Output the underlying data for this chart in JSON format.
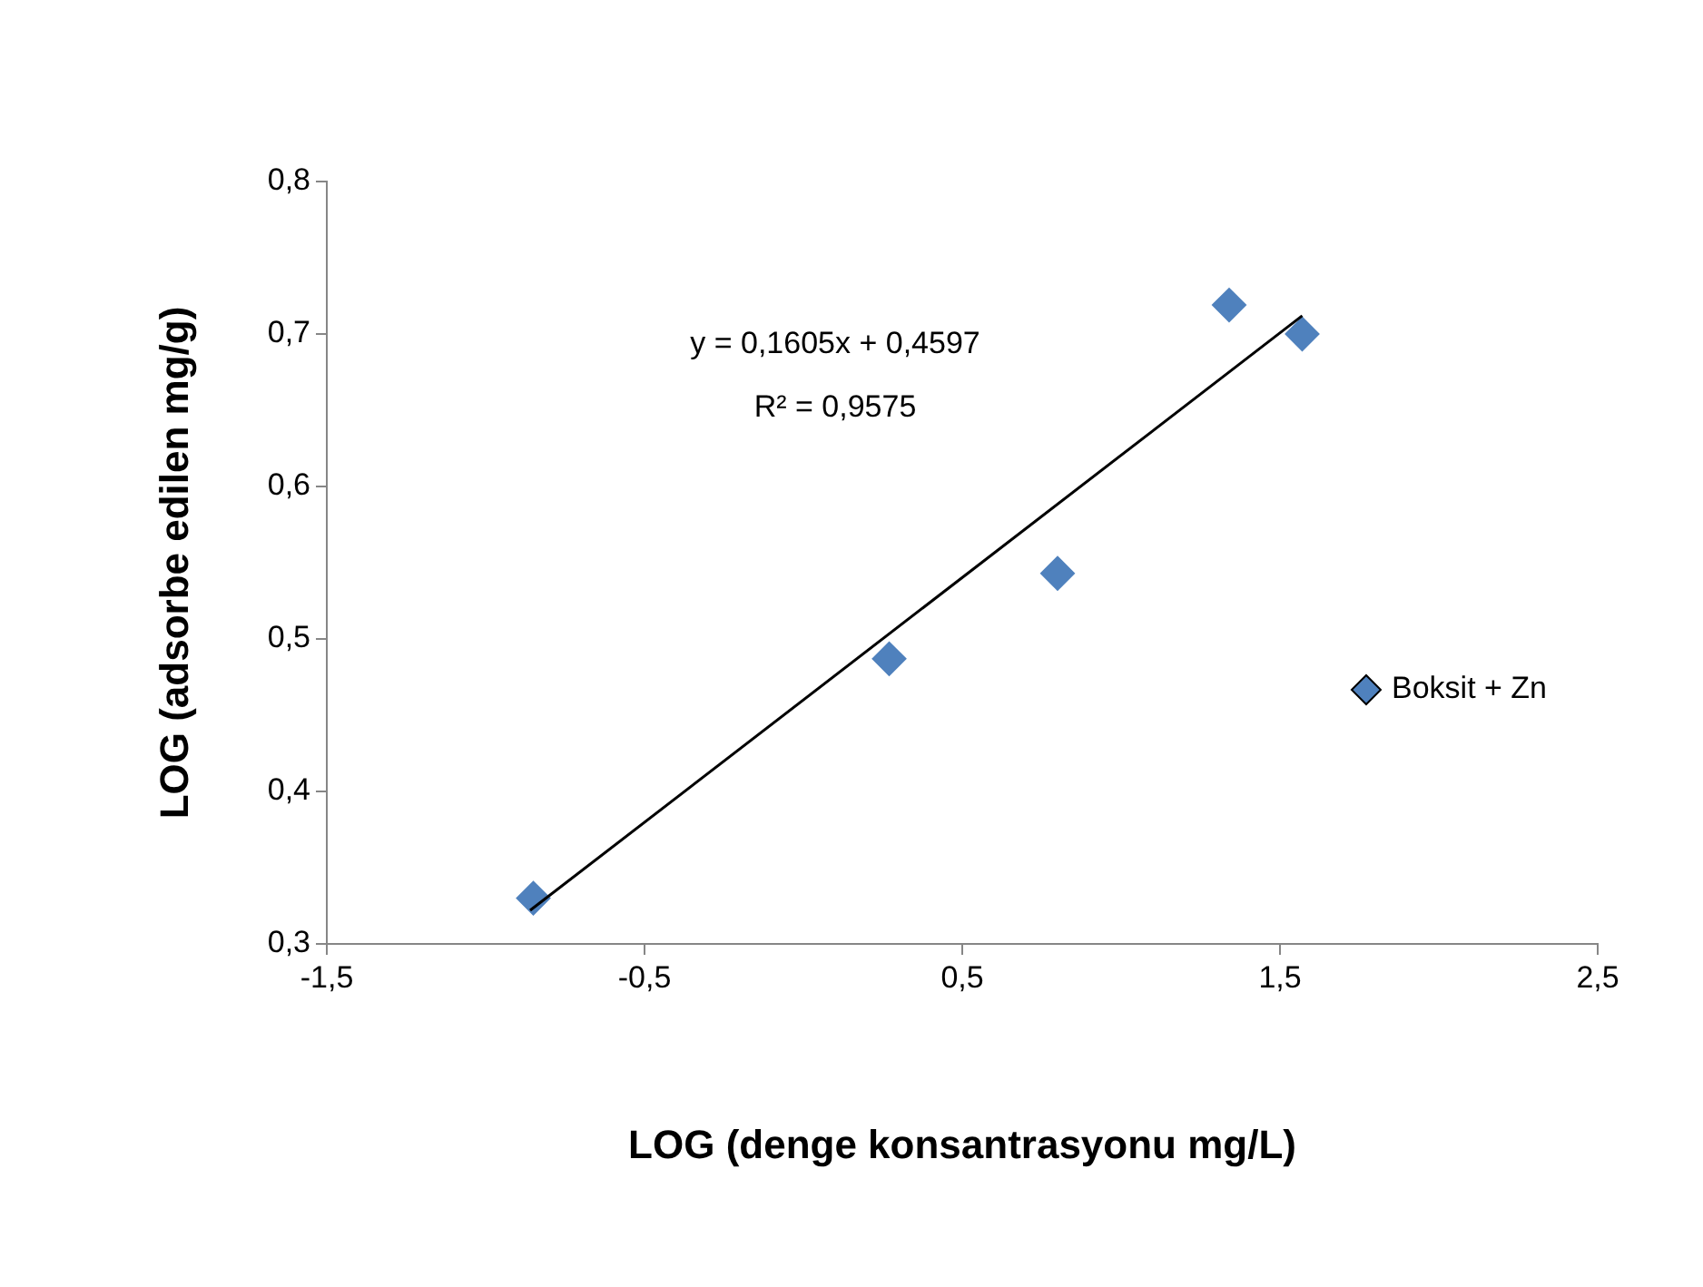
{
  "chart_data": {
    "type": "scatter",
    "xlabel": "LOG (denge konsantrasyonu mg/L)",
    "ylabel": "LOG (adsorbe edilen mg/g)",
    "series": [
      {
        "name": "Boksit + Zn",
        "color": "#4f81bd",
        "marker": "diamond",
        "x": [
          -0.85,
          0.27,
          0.8,
          1.34,
          1.57
        ],
        "values": [
          0.33,
          0.487,
          0.543,
          0.719,
          0.7
        ]
      },
      {
        "type": "line",
        "color": "#000000",
        "marker": "none",
        "x": [
          -0.86,
          1.57
        ],
        "values": [
          0.322,
          0.712
        ]
      }
    ],
    "annotations": [
      "y = 0,1605x + 0,4597",
      "R² = 0,9575"
    ],
    "xlim": [
      -1.5,
      2.5
    ],
    "ylim": [
      0.3,
      0.8
    ],
    "xticks": [
      {
        "value": -1.5,
        "label": "-1,5"
      },
      {
        "value": -0.5,
        "label": "-0,5"
      },
      {
        "value": 0.5,
        "label": "0,5"
      },
      {
        "value": 1.5,
        "label": "1,5"
      },
      {
        "value": 2.5,
        "label": "2,5"
      }
    ],
    "yticks": [
      {
        "value": 0.3,
        "label": "0,3"
      },
      {
        "value": 0.4,
        "label": "0,4"
      },
      {
        "value": 0.5,
        "label": "0,5"
      },
      {
        "value": 0.6,
        "label": "0,6"
      },
      {
        "value": 0.7,
        "label": "0,7"
      },
      {
        "value": 0.8,
        "label": "0,8"
      }
    ],
    "grid": false,
    "legend": "right"
  }
}
